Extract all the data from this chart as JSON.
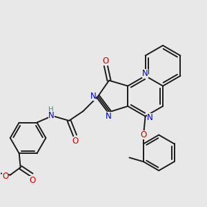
{
  "bg_color": "#e8e8e8",
  "bond_color": "#1a1a1a",
  "bond_width": 1.4,
  "atom_colors": {
    "N": "#0000cc",
    "O": "#cc0000",
    "H": "#4a8a8a",
    "C": "#1a1a1a"
  },
  "fs": 8.5
}
